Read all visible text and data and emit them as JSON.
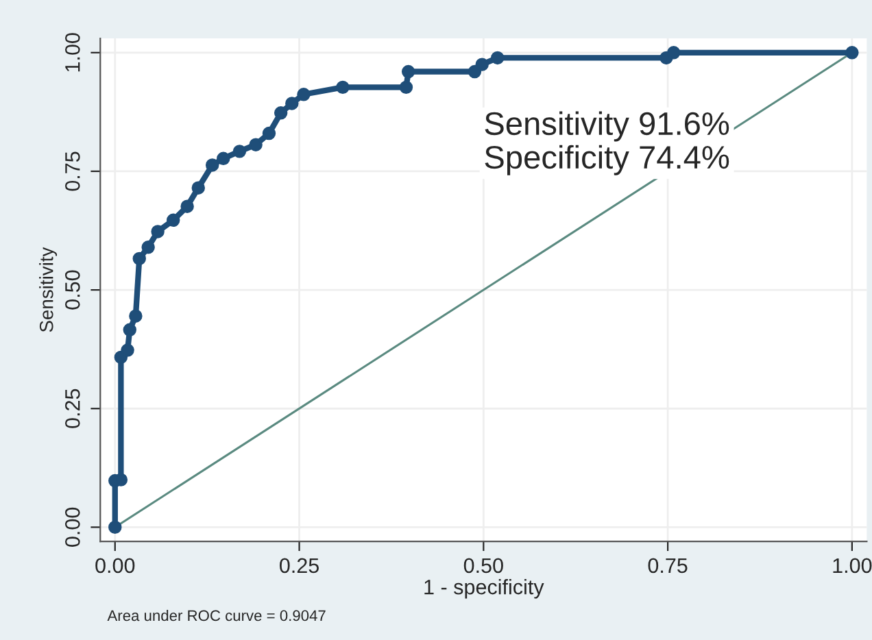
{
  "chart_data": {
    "type": "line",
    "xlabel": "1 - specificity",
    "ylabel": "Sensitivity",
    "xlim": [
      -0.02,
      1.02
    ],
    "ylim": [
      -0.03,
      1.03
    ],
    "xticks": [
      {
        "value": 0,
        "label": "0.00"
      },
      {
        "value": 0.25,
        "label": "0.25"
      },
      {
        "value": 0.5,
        "label": "0.50"
      },
      {
        "value": 0.75,
        "label": "0.75"
      },
      {
        "value": 1,
        "label": "1.00"
      }
    ],
    "yticks": [
      {
        "value": 0,
        "label": "0.00"
      },
      {
        "value": 0.25,
        "label": "0.25"
      },
      {
        "value": 0.5,
        "label": "0.50"
      },
      {
        "value": 0.75,
        "label": "0.75"
      },
      {
        "value": 1,
        "label": "1.00"
      }
    ],
    "grid": true,
    "legend": false,
    "series": [
      {
        "color": "#1f4e79",
        "marker": "circle",
        "x": [
          0,
          0,
          0.008,
          0.008,
          0.017,
          0.02,
          0.028,
          0.033,
          0.045,
          0.058,
          0.079,
          0.098,
          0.113,
          0.132,
          0.147,
          0.169,
          0.191,
          0.209,
          0.225,
          0.24,
          0.256,
          0.309,
          0.395,
          0.398,
          0.488,
          0.498,
          0.519,
          0.748,
          0.758,
          1.0
        ],
        "values": [
          0,
          0.098,
          0.1,
          0.358,
          0.373,
          0.416,
          0.445,
          0.566,
          0.59,
          0.623,
          0.647,
          0.676,
          0.715,
          0.763,
          0.777,
          0.792,
          0.806,
          0.83,
          0.873,
          0.893,
          0.912,
          0.927,
          0.927,
          0.96,
          0.96,
          0.975,
          0.989,
          0.989,
          1.0,
          1.0
        ]
      },
      {
        "color": "#5a8a80",
        "marker": "none",
        "x": [
          0,
          1
        ],
        "values": [
          0,
          1
        ]
      }
    ],
    "annotations": [
      "Sensitivity 91.6%",
      "Specificity 74.4%",
      "Area under ROC curve = 0.9047"
    ]
  }
}
